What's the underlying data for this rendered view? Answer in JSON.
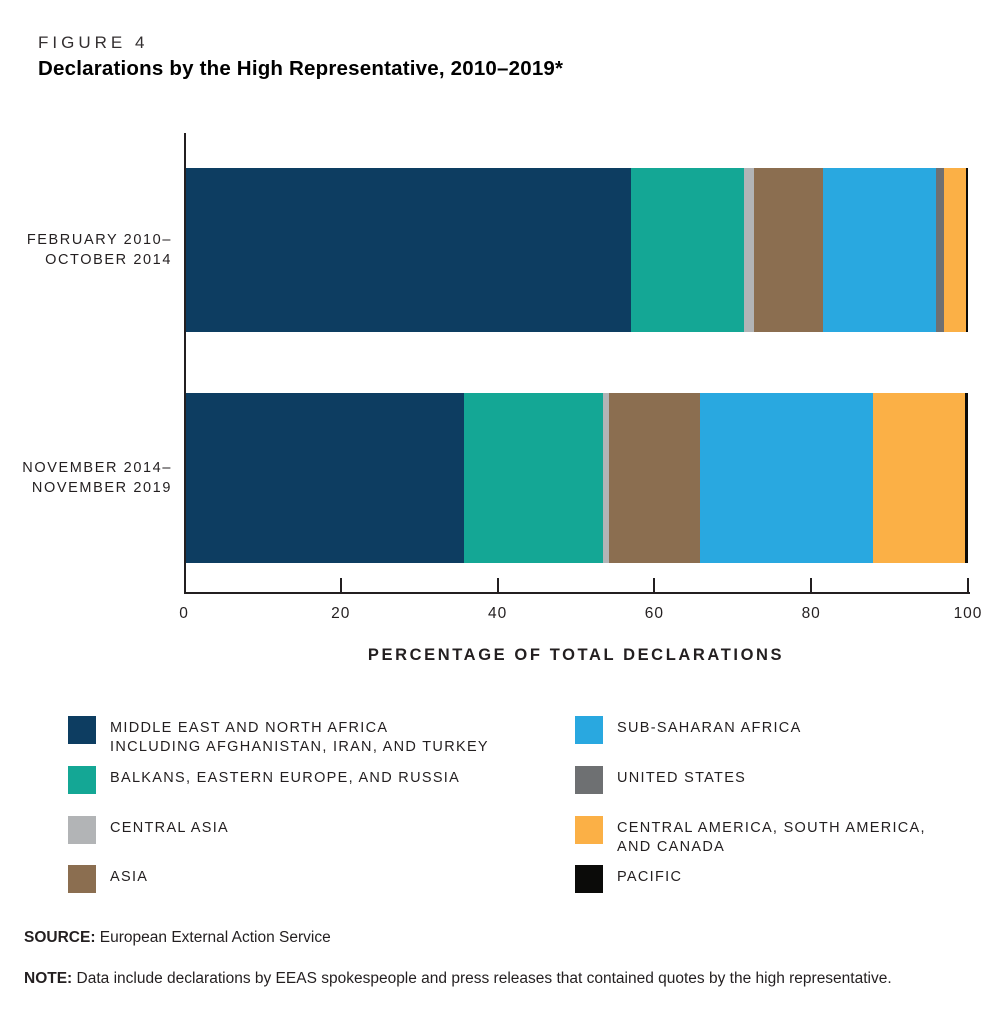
{
  "figure": {
    "label": "FIGURE 4",
    "title": "Declarations by the High Representative, 2010–2019*"
  },
  "chart_data": {
    "type": "bar",
    "orientation": "horizontal",
    "stacked": true,
    "units": "percent",
    "categories": [
      [
        "FEBRUARY 2010–",
        "OCTOBER 2014"
      ],
      [
        "NOVEMBER 2014–",
        "NOVEMBER 2019"
      ]
    ],
    "series": [
      {
        "name": "MIDDLE EAST AND NORTH AFRICA INCLUDING AFGHANISTAN, IRAN, AND TURKEY",
        "color": "#0d3d61",
        "values": [
          56.9,
          35.6
        ]
      },
      {
        "name": "BALKANS, EASTERN EUROPE, AND RUSSIA",
        "color": "#14a795",
        "values": [
          14.4,
          17.7
        ]
      },
      {
        "name": "CENTRAL ASIA",
        "color": "#b2b4b6",
        "values": [
          1.3,
          0.8
        ]
      },
      {
        "name": "ASIA",
        "color": "#8b6e50",
        "values": [
          8.8,
          11.6
        ]
      },
      {
        "name": "SUB-SAHARAN AFRICA",
        "color": "#29a8e0",
        "values": [
          14.5,
          22.1
        ]
      },
      {
        "name": "UNITED STATES",
        "color": "#6e7072",
        "values": [
          1.0,
          0
        ]
      },
      {
        "name": "CENTRAL AMERICA, SOUTH AMERICA, AND CANADA",
        "color": "#fbb046",
        "values": [
          2.8,
          11.8
        ]
      },
      {
        "name": "PACIFIC",
        "color": "#0b0b09",
        "values": [
          0.3,
          0.4
        ]
      }
    ],
    "xlabel": "PERCENTAGE OF TOTAL DECLARATIONS",
    "xlim": [
      0,
      100
    ],
    "xticks": [
      0,
      20,
      40,
      60,
      80,
      100
    ],
    "grid": false,
    "legend_position": "bottom"
  },
  "legend": {
    "left_column": [
      {
        "swatch": "#0d3d61",
        "lines": [
          "MIDDLE EAST AND NORTH AFRICA",
          "INCLUDING AFGHANISTAN, IRAN, AND TURKEY"
        ]
      },
      {
        "swatch": "#14a795",
        "lines": [
          "BALKANS, EASTERN EUROPE, AND RUSSIA"
        ]
      },
      {
        "swatch": "#b2b4b6",
        "lines": [
          "CENTRAL ASIA"
        ]
      },
      {
        "swatch": "#8b6e50",
        "lines": [
          "ASIA"
        ]
      }
    ],
    "right_column": [
      {
        "swatch": "#29a8e0",
        "lines": [
          "SUB-SAHARAN AFRICA"
        ]
      },
      {
        "swatch": "#6e7072",
        "lines": [
          "UNITED STATES"
        ]
      },
      {
        "swatch": "#fbb046",
        "lines": [
          "CENTRAL AMERICA, SOUTH AMERICA,",
          "AND CANADA"
        ]
      },
      {
        "swatch": "#0b0b09",
        "lines": [
          "PACIFIC"
        ]
      }
    ]
  },
  "footer": {
    "source_label": "SOURCE:",
    "source_text": " European External Action Service",
    "note_label": "NOTE:",
    "note_text": " Data include declarations by EEAS spokespeople and press releases that contained quotes by the high representative."
  },
  "colors": {
    "axis": "#231f20",
    "text": "#231f20",
    "background": "#ffffff"
  }
}
